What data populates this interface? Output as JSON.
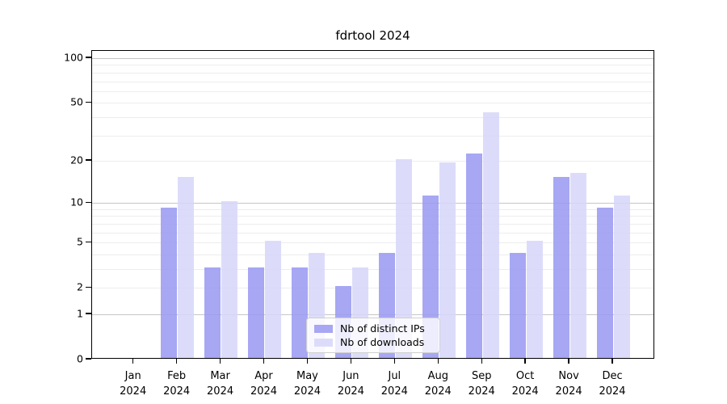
{
  "title": "fdrtool 2024",
  "colors": {
    "ips_bar": "#9b9bf2",
    "downloads_bar": "#d7d7f9",
    "grid_major": "#c6c6c6",
    "grid_minor": "#ededed",
    "axis": "#000000",
    "legend_border": "#cfcfcf"
  },
  "legend": {
    "items": [
      {
        "label": "Nb of distinct IPs",
        "color_key": "ips_bar"
      },
      {
        "label": "Nb of downloads",
        "color_key": "downloads_bar"
      }
    ],
    "position": "lower center"
  },
  "y_axis": {
    "scale": "log1p",
    "tick_labels": [
      0,
      1,
      2,
      5,
      10,
      20,
      50,
      100
    ],
    "major_gridlines": [
      1,
      10,
      100
    ],
    "minor_gridlines": [
      2,
      3,
      4,
      5,
      6,
      7,
      8,
      9,
      20,
      30,
      40,
      50,
      60,
      70,
      80,
      90
    ],
    "ymax": 112
  },
  "x_axis": {
    "months": [
      "Jan",
      "Feb",
      "Mar",
      "Apr",
      "May",
      "Jun",
      "Jul",
      "Aug",
      "Sep",
      "Oct",
      "Nov",
      "Dec"
    ],
    "year": "2024"
  },
  "chart_data": {
    "type": "bar",
    "title": "fdrtool 2024",
    "categories": [
      "Jan 2024",
      "Feb 2024",
      "Mar 2024",
      "Apr 2024",
      "May 2024",
      "Jun 2024",
      "Jul 2024",
      "Aug 2024",
      "Sep 2024",
      "Oct 2024",
      "Nov 2024",
      "Dec 2024"
    ],
    "series": [
      {
        "name": "Nb of distinct IPs",
        "values": [
          0,
          9,
          3,
          3,
          3,
          2,
          4,
          11,
          22,
          4,
          15,
          9
        ]
      },
      {
        "name": "Nb of downloads",
        "values": [
          0,
          15,
          10,
          5,
          4,
          3,
          20,
          19,
          42,
          5,
          16,
          11
        ]
      }
    ],
    "yscale": "log1p",
    "yticks": [
      0,
      1,
      2,
      5,
      10,
      20,
      50,
      100
    ],
    "ylim": [
      0,
      112
    ],
    "grid": "horizontal-log-decades",
    "legend_position": "lower center"
  }
}
